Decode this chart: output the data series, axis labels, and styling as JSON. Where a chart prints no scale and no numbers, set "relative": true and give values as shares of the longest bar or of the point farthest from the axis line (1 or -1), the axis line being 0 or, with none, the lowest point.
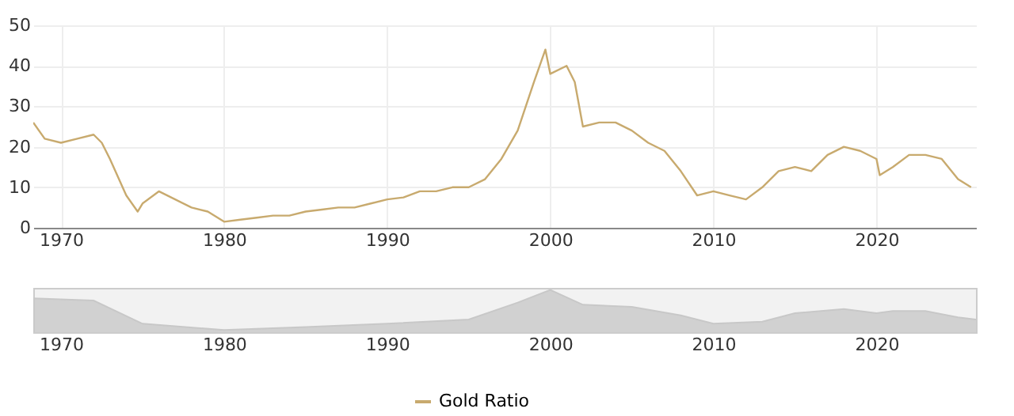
{
  "chart_data": [
    {
      "type": "line",
      "legend": "bottom",
      "grid": true,
      "xlim": [
        1968.3,
        2026.1
      ],
      "xticks": [
        1970,
        1980,
        1990,
        2000,
        2010,
        2020
      ],
      "ylim": [
        0,
        50
      ],
      "yticks": [
        0,
        10,
        20,
        30,
        40,
        50
      ],
      "x": [
        1968.3,
        1969,
        1970,
        1971,
        1972,
        1972.5,
        1973,
        1974,
        1974.7,
        1975,
        1976,
        1977,
        1978,
        1979,
        1980,
        1981,
        1982,
        1983,
        1984,
        1985,
        1986,
        1987,
        1988,
        1989,
        1990,
        1991,
        1992,
        1993,
        1994,
        1995,
        1996,
        1997,
        1998,
        1999,
        1999.7,
        2000,
        2001,
        2001.5,
        2002,
        2003,
        2004,
        2005,
        2006,
        2007,
        2008,
        2009,
        2010,
        2011,
        2012,
        2013,
        2014,
        2015,
        2016,
        2017,
        2018,
        2019,
        2020,
        2020.2,
        2021,
        2022,
        2023,
        2024,
        2025,
        2025.8
      ],
      "series": [
        {
          "name": "Gold Ratio",
          "color": "#c8aa6e",
          "values": [
            26,
            22,
            21,
            22,
            23,
            21,
            17,
            8,
            4,
            6,
            9,
            7,
            5,
            4,
            1.5,
            2,
            2.5,
            3,
            3,
            4,
            4.5,
            5,
            5,
            6,
            7,
            7.5,
            9,
            9,
            10,
            10,
            12,
            17,
            24,
            36,
            44,
            38,
            40,
            36,
            25,
            26,
            26,
            24,
            21,
            19,
            14,
            8,
            9,
            8,
            7,
            10,
            14,
            15,
            14,
            18,
            20,
            19,
            17,
            13,
            15,
            18,
            18,
            17,
            12,
            10
          ]
        }
      ]
    },
    {
      "type": "area",
      "relative": true,
      "tick_labels": "x",
      "xlim": [
        1968.3,
        2026.1
      ],
      "xticks": [
        1970,
        1980,
        1990,
        2000,
        2010,
        2020
      ],
      "x": [
        1968.3,
        1972,
        1975,
        1980,
        1985,
        1990,
        1995,
        1998,
        2000,
        2002,
        2005,
        2008,
        2010,
        2013,
        2015,
        2018,
        2020,
        2021,
        2023,
        2025,
        2026.1
      ],
      "series": [
        {
          "color": "#c8c8c8",
          "values": [
            0.8,
            0.75,
            0.2,
            0.05,
            0.12,
            0.2,
            0.3,
            0.7,
            1,
            0.65,
            0.6,
            0.4,
            0.2,
            0.25,
            0.45,
            0.55,
            0.45,
            0.5,
            0.5,
            0.35,
            0.3
          ]
        }
      ]
    }
  ]
}
